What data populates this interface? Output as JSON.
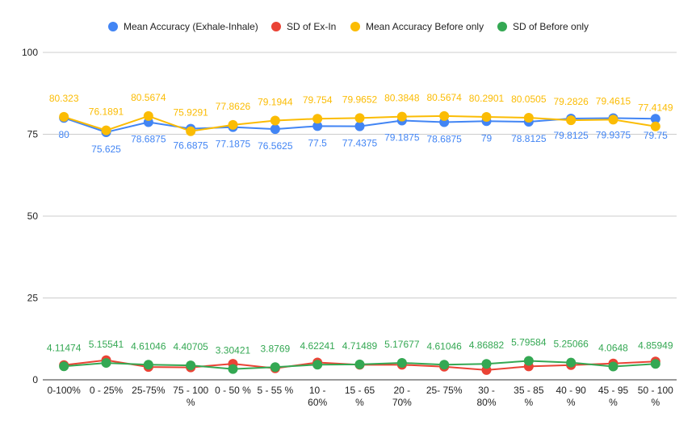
{
  "chart_data": {
    "type": "line",
    "title": "",
    "xlabel": "",
    "ylabel": "",
    "ylim": [
      0,
      100
    ],
    "yticks": [
      "0",
      "25",
      "50",
      "75",
      "100"
    ],
    "grid": "horizontal",
    "legend_position": "top",
    "categories": [
      [
        "0-100%"
      ],
      [
        "0 - 25%"
      ],
      [
        "25-75%"
      ],
      [
        "75 - 100",
        "%"
      ],
      [
        "0 - 50 %"
      ],
      [
        "5 - 55 %"
      ],
      [
        "10 -",
        "60%"
      ],
      [
        "15 - 65",
        "%"
      ],
      [
        "20 -",
        "70%"
      ],
      [
        "25- 75%"
      ],
      [
        "30 -",
        "80%"
      ],
      [
        "35 - 85",
        "%"
      ],
      [
        "40 - 90",
        "%"
      ],
      [
        "45 - 95",
        "%"
      ],
      [
        "50 - 100",
        "%"
      ]
    ],
    "series": [
      {
        "name": "Mean Accuracy (Exhale-Inhale)",
        "color": "#4285F4",
        "values": [
          80,
          75.625,
          78.6875,
          76.6875,
          77.1875,
          76.5625,
          77.5,
          77.4375,
          79.1875,
          78.6875,
          79,
          78.8125,
          79.8125,
          79.9375,
          79.75
        ],
        "labels": [
          "80",
          "75.625",
          "78.6875",
          "76.6875",
          "77.1875",
          "76.5625",
          "77.5",
          "77.4375",
          "79.1875",
          "78.6875",
          "79",
          "78.8125",
          "79.8125",
          "79.9375",
          "79.75"
        ],
        "label_position": "below"
      },
      {
        "name": "SD of Ex-In",
        "color": "#EA4335",
        "values": [
          4.5,
          6.0,
          3.9,
          3.8,
          4.9,
          3.5,
          5.3,
          4.6,
          4.6,
          4.0,
          3.0,
          4.1,
          4.5,
          5.0,
          5.6
        ],
        "labels": null,
        "label_position": "none"
      },
      {
        "name": "Mean Accuracy Before only",
        "color": "#FBBC04",
        "values": [
          80.323,
          76.1891,
          80.5674,
          75.9291,
          77.8626,
          79.1944,
          79.754,
          79.9652,
          80.3848,
          80.5674,
          80.2901,
          80.0505,
          79.2826,
          79.4615,
          77.4149
        ],
        "labels": [
          "80.323",
          "76.1891",
          "80.5674",
          "75.9291",
          "77.8626",
          "79.1944",
          "79.754",
          "79.9652",
          "80.3848",
          "80.5674",
          "80.2901",
          "80.0505",
          "79.2826",
          "79.4615",
          "77.4149"
        ],
        "label_position": "above"
      },
      {
        "name": "SD of Before only",
        "color": "#34A853",
        "values": [
          4.11474,
          5.15541,
          4.61046,
          4.40705,
          3.30421,
          3.8769,
          4.62241,
          4.71489,
          5.17677,
          4.61046,
          4.86882,
          5.79584,
          5.25066,
          4.0648,
          4.85949
        ],
        "labels": [
          "4.11474",
          "5.15541",
          "4.61046",
          "4.40705",
          "3.30421",
          "3.8769",
          "4.62241",
          "4.71489",
          "5.17677",
          "4.61046",
          "4.86882",
          "5.79584",
          "5.25066",
          "4.0648",
          "4.85949"
        ],
        "label_position": "above"
      }
    ]
  }
}
